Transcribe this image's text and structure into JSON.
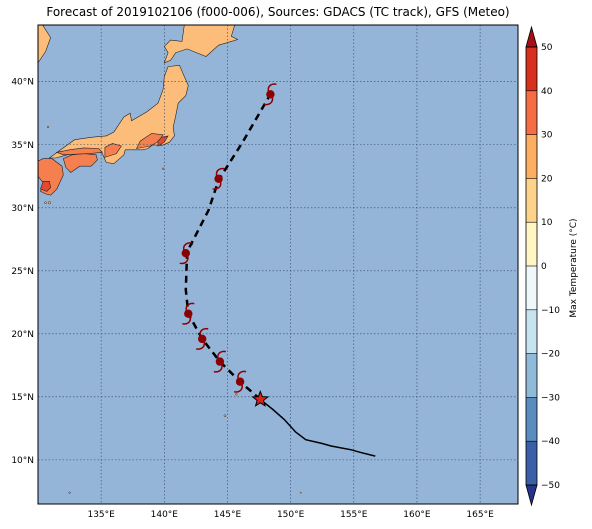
{
  "title": "Forecast of 2019102106 (f000-006), Sources: GDACS (TC track), GFS (Meteo)",
  "colors": {
    "ocean": "#94b4d8",
    "land_warm": "#fdbd7a",
    "land_hot": "#f57f4f",
    "land_hotter": "#e34a33",
    "grid": "#334466",
    "track": "#000000",
    "storm_symbol": "#8b0000",
    "current_marker": "#e0201b"
  },
  "map": {
    "lon_range": [
      130,
      168
    ],
    "lat_range": [
      6.5,
      44.5
    ],
    "lon_ticks": [
      135,
      140,
      145,
      150,
      155,
      160,
      165
    ],
    "lat_ticks": [
      10,
      15,
      20,
      25,
      30,
      35,
      40
    ],
    "lon_tick_labels": [
      "135°E",
      "140°E",
      "145°E",
      "150°E",
      "155°E",
      "160°E",
      "165°E"
    ],
    "lat_tick_labels": [
      "10°N",
      "15°N",
      "20°N",
      "25°N",
      "30°N",
      "35°N",
      "40°N"
    ],
    "observed_track": [
      [
        156.7,
        10.3
      ],
      [
        155.5,
        10.6
      ],
      [
        154.8,
        10.8
      ],
      [
        153.2,
        11.1
      ],
      [
        152.5,
        11.3
      ],
      [
        151.2,
        11.6
      ],
      [
        150.4,
        12.2
      ],
      [
        149.5,
        13.2
      ],
      [
        148.6,
        14.0
      ],
      [
        147.6,
        14.8
      ]
    ],
    "forecast_track": [
      [
        147.6,
        14.8
      ],
      [
        146.0,
        16.2
      ],
      [
        144.4,
        17.8
      ],
      [
        143.0,
        19.6
      ],
      [
        141.9,
        21.6
      ],
      [
        141.7,
        23.5
      ],
      [
        141.8,
        26.5
      ],
      [
        143.5,
        29.8
      ],
      [
        144.3,
        32.2
      ],
      [
        146.2,
        35.2
      ],
      [
        148.4,
        39.0
      ]
    ],
    "storm_positions": [
      [
        146.0,
        16.2
      ],
      [
        144.4,
        17.8
      ],
      [
        143.0,
        19.6
      ],
      [
        141.9,
        21.6
      ],
      [
        141.7,
        26.4
      ],
      [
        144.3,
        32.3
      ],
      [
        148.4,
        39.0
      ]
    ],
    "current_position": [
      147.6,
      14.8
    ]
  },
  "colorbar": {
    "label": "Max Temperature (°C)",
    "ticks": [
      -50,
      -40,
      -30,
      -20,
      -10,
      0,
      10,
      20,
      30,
      40,
      50
    ],
    "tick_labels": [
      "−50",
      "−40",
      "−30",
      "−20",
      "−10",
      "0",
      "10",
      "20",
      "30",
      "40",
      "50"
    ],
    "colors": [
      "#27348b",
      "#3a5fa8",
      "#5b8cc0",
      "#8fbbd9",
      "#c7e3ef",
      "#eef8fb",
      "#fff6c4",
      "#fdd28a",
      "#fdae61",
      "#f46d43",
      "#d7301f",
      "#a50f15"
    ]
  }
}
